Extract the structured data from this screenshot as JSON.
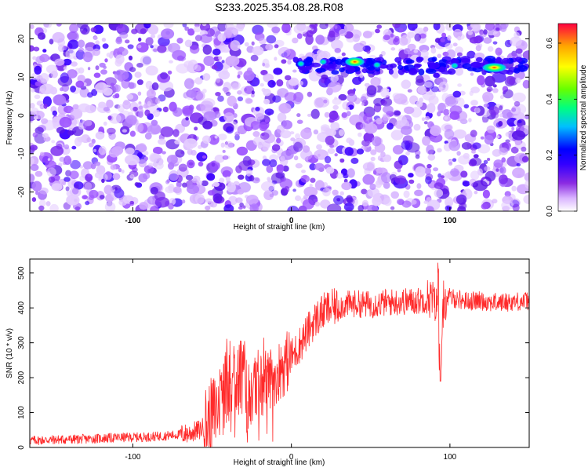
{
  "title": "S233.2025.354.08.28.R08",
  "chart_data": [
    {
      "type": "heatmap",
      "name": "spectrogram",
      "xlabel": "Height of straight line (km)",
      "ylabel": "Frequency (Hz)",
      "xlim": [
        -165,
        150
      ],
      "ylim": [
        -25,
        24
      ],
      "xticks": [
        -100,
        0,
        100
      ],
      "xtick_labels": [
        "-100",
        "0",
        "100"
      ],
      "yticks": [
        -20,
        -10,
        0,
        10,
        20
      ],
      "ytick_labels": [
        "-20",
        "-10",
        "0",
        "10",
        "20"
      ],
      "colorbar": {
        "label": "Normalized spectral amplitude",
        "range": [
          0.0,
          0.67
        ],
        "ticks": [
          0.0,
          0.2,
          0.4,
          0.6
        ],
        "tick_labels": [
          "0.0",
          "0.2",
          "0.4",
          "0.6"
        ],
        "colors": [
          "#ffffff",
          "#d9b3ff",
          "#8a2be2",
          "#3300ff",
          "#0000ff",
          "#00bfff",
          "#00ff80",
          "#66ff00",
          "#ffff00",
          "#ffa500",
          "#ff0040"
        ]
      },
      "features": [
        {
          "label": "signal band",
          "x": [
            5,
            150
          ],
          "frequency": 13
        },
        {
          "peak_x": 40,
          "peak_frequency": 14,
          "amplitude": 0.5
        },
        {
          "peak_x": 128,
          "peak_frequency": 12.5,
          "amplitude": 0.6
        }
      ]
    },
    {
      "type": "line",
      "name": "snr",
      "xlabel": "Height of straight line (km)",
      "ylabel": "SNR (10 * v/v)",
      "xlim": [
        -165,
        150
      ],
      "ylim": [
        0,
        540
      ],
      "xticks": [
        -100,
        0,
        100
      ],
      "xtick_labels": [
        "-100",
        "0",
        "100"
      ],
      "yticks": [
        0,
        100,
        200,
        300,
        400,
        500
      ],
      "ytick_labels": [
        "0",
        "100",
        "200",
        "300",
        "400",
        "500"
      ],
      "color": "#ff2a2a",
      "series": [
        {
          "name": "SNR",
          "x": [
            -165,
            -150,
            -130,
            -110,
            -90,
            -75,
            -65,
            -58,
            -52,
            -46,
            -42,
            -38,
            -35,
            -33,
            -30,
            -26,
            -22,
            -18,
            -14,
            -10,
            -6,
            -2,
            2,
            6,
            10,
            14,
            18,
            22,
            26,
            30,
            35,
            40,
            50,
            60,
            70,
            80,
            88,
            92,
            94,
            96,
            100,
            110,
            120,
            130,
            140,
            150
          ],
          "values": [
            20,
            22,
            24,
            28,
            30,
            35,
            40,
            50,
            70,
            120,
            160,
            200,
            220,
            200,
            180,
            160,
            170,
            180,
            200,
            210,
            230,
            250,
            270,
            300,
            330,
            360,
            380,
            395,
            400,
            405,
            410,
            412,
            410,
            415,
            418,
            420,
            430,
            400,
            200,
            420,
            430,
            420,
            420,
            415,
            418,
            420
          ]
        }
      ],
      "annotations": [
        {
          "label": "spike near 94 km",
          "x": 94,
          "y": 190
        }
      ]
    }
  ]
}
